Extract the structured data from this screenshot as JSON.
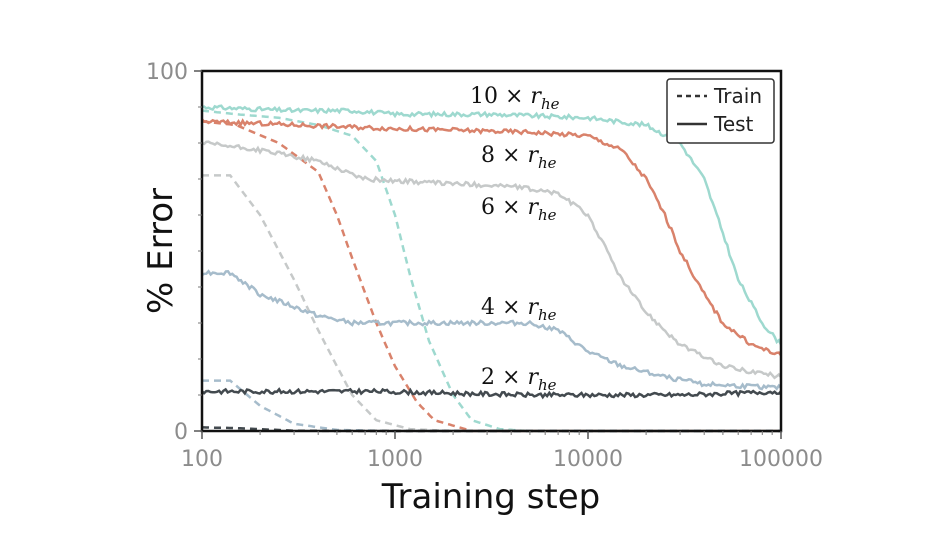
{
  "chart_data": {
    "type": "line",
    "title": "",
    "xlabel": "Training step",
    "ylabel": "% Error",
    "xscale": "log",
    "xlim": [
      100,
      100000
    ],
    "ylim": [
      0,
      100
    ],
    "x_ticks": [
      "100",
      "1000",
      "10000",
      "100000"
    ],
    "y_ticks": [
      "0",
      "100"
    ],
    "grid": false,
    "legend": {
      "placement": "top-right",
      "entries": [
        {
          "label": "Train",
          "style": "dashed"
        },
        {
          "label": "Test",
          "style": "solid"
        }
      ]
    },
    "series": [
      {
        "group": "10 × r_he",
        "color": "#9ed9cf",
        "train": [
          [
            100,
            89
          ],
          [
            150,
            88
          ],
          [
            250,
            87
          ],
          [
            400,
            85
          ],
          [
            600,
            82
          ],
          [
            800,
            75
          ],
          [
            1000,
            60
          ],
          [
            1200,
            43
          ],
          [
            1500,
            25
          ],
          [
            2000,
            10
          ],
          [
            2500,
            3
          ],
          [
            3500,
            0.5
          ],
          [
            5000,
            0
          ],
          [
            100000,
            0
          ]
        ],
        "test": [
          [
            100,
            90
          ],
          [
            300,
            89
          ],
          [
            600,
            89
          ],
          [
            1000,
            88
          ],
          [
            3000,
            88
          ],
          [
            10000,
            87
          ],
          [
            20000,
            85
          ],
          [
            30000,
            80
          ],
          [
            40000,
            70
          ],
          [
            50000,
            55
          ],
          [
            60000,
            42
          ],
          [
            80000,
            30
          ],
          [
            100000,
            24
          ]
        ]
      },
      {
        "group": "8 × r_he",
        "color": "#d9826b",
        "train": [
          [
            100,
            86
          ],
          [
            150,
            85
          ],
          [
            250,
            80
          ],
          [
            400,
            72
          ],
          [
            500,
            60
          ],
          [
            600,
            48
          ],
          [
            800,
            30
          ],
          [
            1000,
            18
          ],
          [
            1300,
            8
          ],
          [
            1600,
            3
          ],
          [
            2500,
            0
          ],
          [
            100000,
            0
          ]
        ],
        "test": [
          [
            100,
            86
          ],
          [
            1000,
            84
          ],
          [
            5000,
            83
          ],
          [
            10000,
            82
          ],
          [
            15000,
            78
          ],
          [
            20000,
            70
          ],
          [
            25000,
            60
          ],
          [
            30000,
            50
          ],
          [
            40000,
            38
          ],
          [
            50000,
            30
          ],
          [
            70000,
            24
          ],
          [
            100000,
            21
          ]
        ]
      },
      {
        "group": "6 × r_he",
        "color": "#c6c9c9",
        "train": [
          [
            100,
            71
          ],
          [
            140,
            71
          ],
          [
            200,
            60
          ],
          [
            300,
            42
          ],
          [
            400,
            28
          ],
          [
            500,
            18
          ],
          [
            600,
            10
          ],
          [
            800,
            3
          ],
          [
            1200,
            0.5
          ],
          [
            2000,
            0
          ],
          [
            100000,
            0
          ]
        ],
        "test": [
          [
            100,
            80
          ],
          [
            200,
            78
          ],
          [
            400,
            75
          ],
          [
            700,
            70
          ],
          [
            1500,
            69
          ],
          [
            4000,
            68
          ],
          [
            7000,
            66
          ],
          [
            10000,
            60
          ],
          [
            12000,
            52
          ],
          [
            15000,
            42
          ],
          [
            20000,
            33
          ],
          [
            30000,
            24
          ],
          [
            50000,
            18
          ],
          [
            100000,
            15
          ]
        ]
      },
      {
        "group": "4 × r_he",
        "color": "#a6bccb",
        "train": [
          [
            100,
            14
          ],
          [
            140,
            14
          ],
          [
            200,
            7
          ],
          [
            300,
            2
          ],
          [
            500,
            0.3
          ],
          [
            1000,
            0
          ],
          [
            100000,
            0
          ]
        ],
        "test": [
          [
            100,
            44
          ],
          [
            140,
            44
          ],
          [
            200,
            38
          ],
          [
            400,
            32
          ],
          [
            600,
            30
          ],
          [
            1500,
            30
          ],
          [
            3000,
            30
          ],
          [
            5000,
            30
          ],
          [
            7000,
            28
          ],
          [
            10000,
            22
          ],
          [
            15000,
            18
          ],
          [
            25000,
            15
          ],
          [
            40000,
            13
          ],
          [
            100000,
            12
          ]
        ]
      },
      {
        "group": "2 × r_he",
        "color": "#434a4f",
        "train": [
          [
            100,
            1
          ],
          [
            150,
            0.8
          ],
          [
            200,
            0.5
          ],
          [
            300,
            0.1
          ],
          [
            500,
            0
          ],
          [
            100000,
            0
          ]
        ],
        "test": [
          [
            100,
            11
          ],
          [
            300,
            11
          ],
          [
            800,
            11
          ],
          [
            2000,
            10.5
          ],
          [
            5000,
            10
          ],
          [
            10000,
            10
          ],
          [
            30000,
            10
          ],
          [
            60000,
            10.5
          ],
          [
            100000,
            11
          ]
        ]
      }
    ],
    "annotations": [
      {
        "factor": "10 ×",
        "var": "r",
        "sub": "he"
      },
      {
        "factor": "8 ×",
        "var": "r",
        "sub": "he"
      },
      {
        "factor": "6 ×",
        "var": "r",
        "sub": "he"
      },
      {
        "factor": "4 ×",
        "var": "r",
        "sub": "he"
      },
      {
        "factor": "2 ×",
        "var": "r",
        "sub": "he"
      }
    ]
  }
}
